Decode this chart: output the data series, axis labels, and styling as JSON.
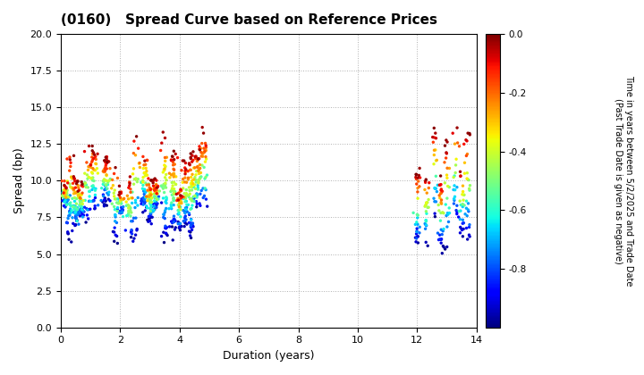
{
  "title": "(0160)   Spread Curve based on Reference Prices",
  "xlabel": "Duration (years)",
  "ylabel": "Spread (bp)",
  "xlim": [
    0,
    14
  ],
  "ylim": [
    0,
    20
  ],
  "xticks": [
    0,
    2,
    4,
    6,
    8,
    10,
    12,
    14
  ],
  "yticks": [
    0.0,
    2.5,
    5.0,
    7.5,
    10.0,
    12.5,
    15.0,
    17.5,
    20.0
  ],
  "colorbar_label_line1": "Time in years between 5/2/2025 and Trade Date",
  "colorbar_label_line2": "(Past Trade Date is given as negative)",
  "cmap": "jet",
  "color_min": -1.0,
  "color_max": 0.0,
  "colorbar_ticks": [
    0.0,
    -0.2,
    -0.4,
    -0.6,
    -0.8
  ],
  "background_color": "#ffffff",
  "grid_color": "#b0b0b0",
  "title_fontsize": 11,
  "axis_fontsize": 9,
  "marker_size": 6,
  "cluster1_centers": [
    0.15,
    0.3,
    0.5,
    0.7,
    0.9,
    1.1,
    1.5,
    1.8,
    2.0,
    2.3,
    2.5,
    2.8,
    3.0,
    3.2,
    3.5,
    3.8,
    4.0,
    4.2,
    4.4,
    4.6,
    4.8
  ],
  "cluster2_centers": [
    12.0,
    12.3,
    12.6,
    12.8,
    13.0,
    13.3,
    13.5,
    13.7
  ]
}
